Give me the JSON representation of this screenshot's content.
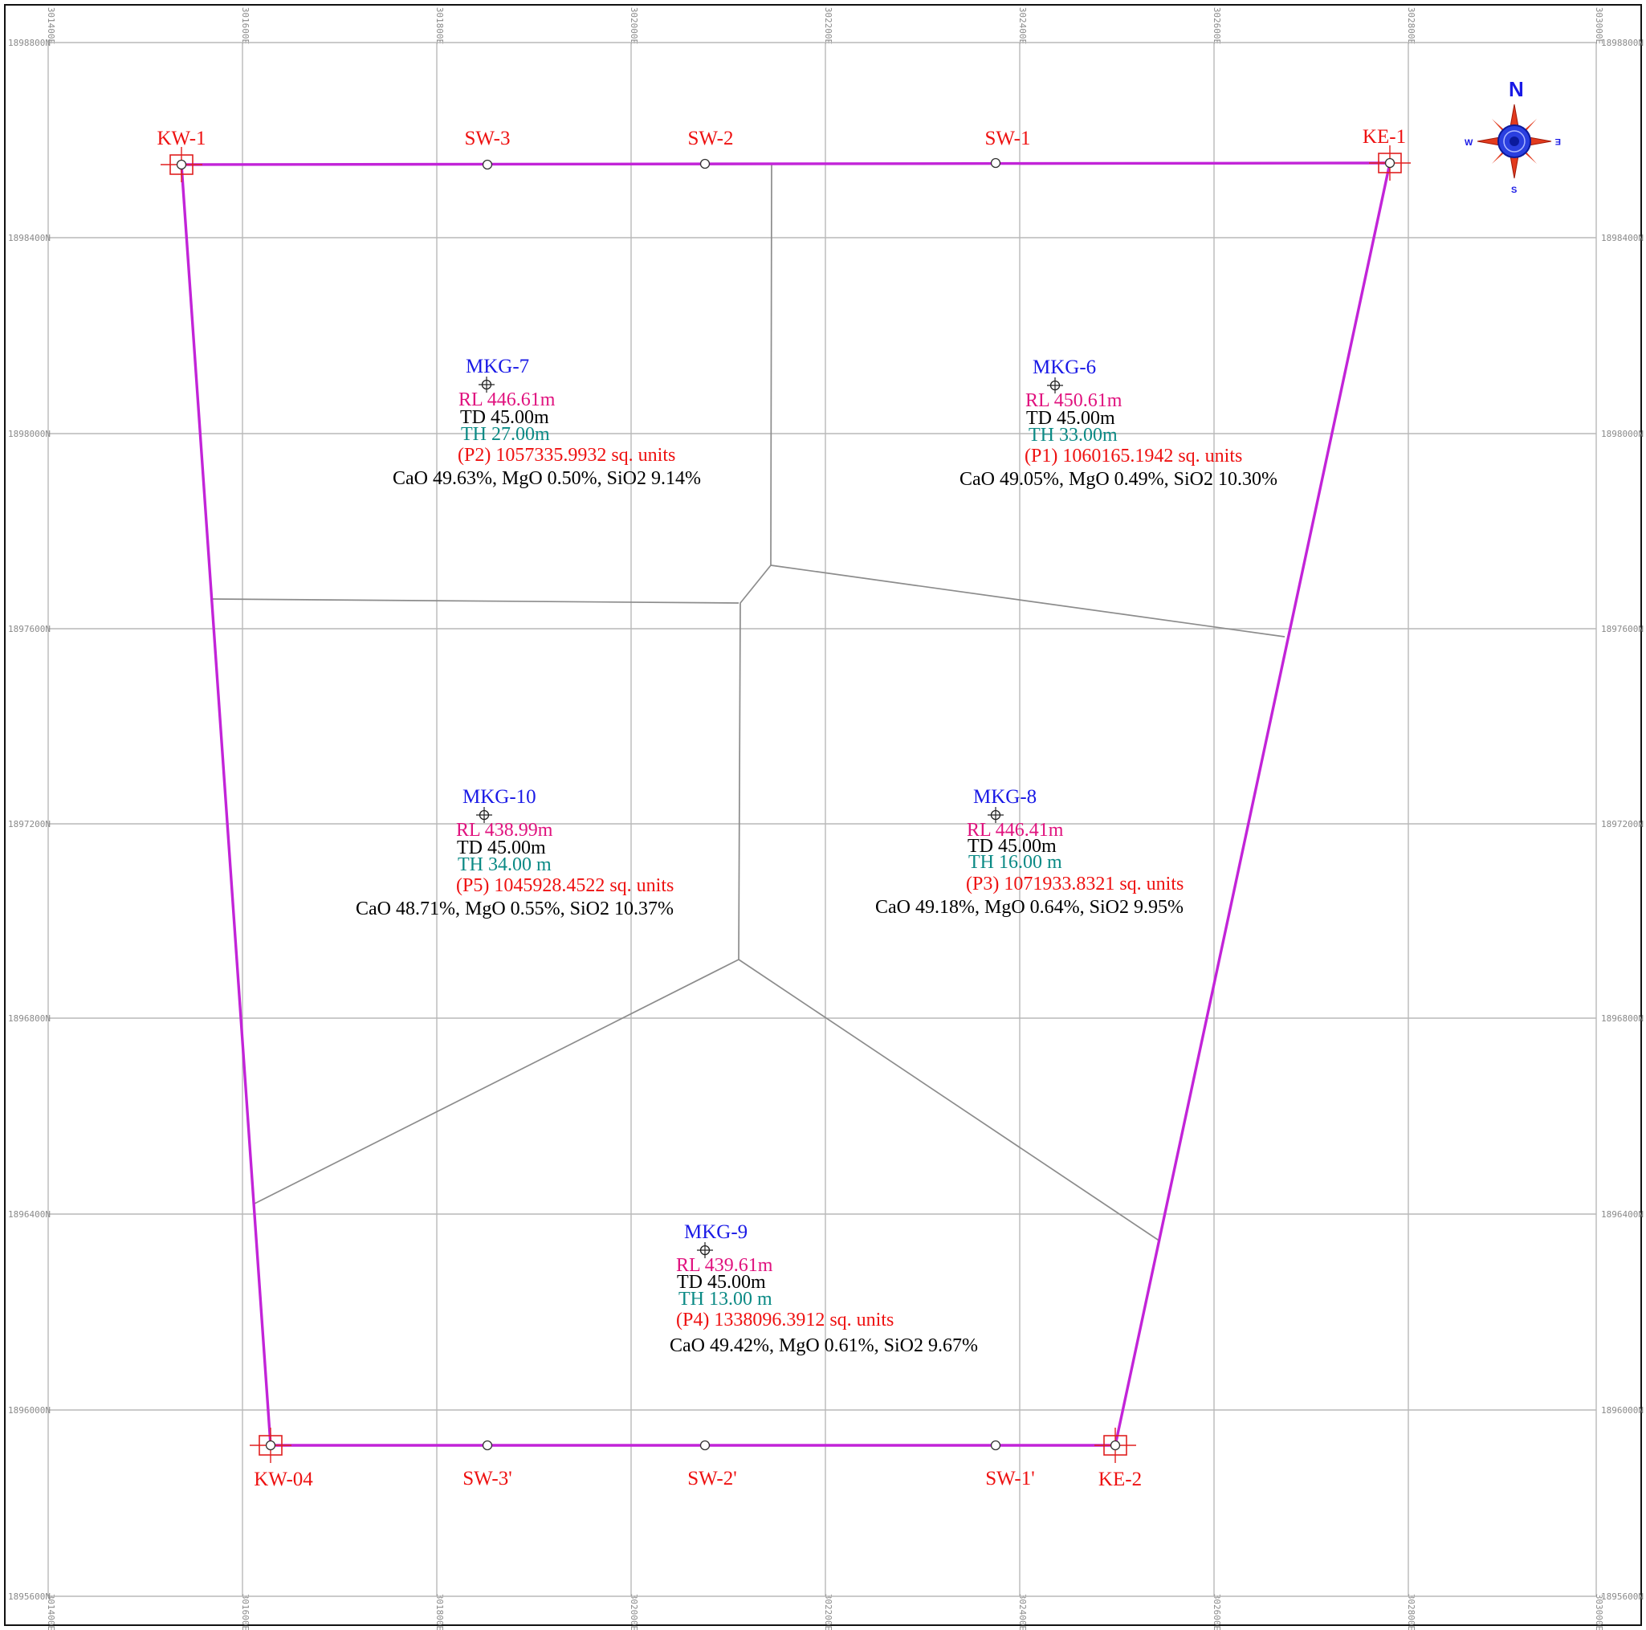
{
  "map": {
    "grid_eastings": [
      "301400E",
      "301600E",
      "301800E",
      "302000E",
      "302200E",
      "302400E",
      "302600E",
      "302800E",
      "303000E"
    ],
    "grid_northings": [
      "1898800N",
      "1898400N",
      "1898000N",
      "1897600N",
      "1897200N",
      "1896800N",
      "1896400N",
      "1896000N",
      "1895600N"
    ]
  },
  "compass": {
    "north": "N",
    "south": "S",
    "east": "E",
    "west": "W"
  },
  "pillars": [
    {
      "id": "KW-1",
      "label": "KW-1",
      "type": "corner"
    },
    {
      "id": "SW-3",
      "label": "SW-3",
      "type": "point"
    },
    {
      "id": "SW-2",
      "label": "SW-2",
      "type": "point"
    },
    {
      "id": "SW-1",
      "label": "SW-1",
      "type": "point"
    },
    {
      "id": "KE-1",
      "label": "KE-1",
      "type": "corner"
    },
    {
      "id": "KW-04",
      "label": "KW-04",
      "type": "corner"
    },
    {
      "id": "SW-3p",
      "label": "SW-3'",
      "type": "point"
    },
    {
      "id": "SW-2p",
      "label": "SW-2'",
      "type": "point"
    },
    {
      "id": "SW-1p",
      "label": "SW-1'",
      "type": "point"
    },
    {
      "id": "KE-2",
      "label": "KE-2",
      "type": "corner"
    }
  ],
  "boreholes": [
    {
      "id": "MKG-7",
      "name": "MKG-7",
      "rl": "RL 446.61m",
      "td": "TD 45.00m",
      "th": "TH 27.00m",
      "area": "(P2) 1057335.9932 sq. units",
      "chem": "CaO 49.63%, MgO 0.50%, SiO2 9.14%"
    },
    {
      "id": "MKG-6",
      "name": "MKG-6",
      "rl": "RL 450.61m",
      "td": "TD 45.00m",
      "th": "TH 33.00m",
      "area": "(P1) 1060165.1942 sq. units",
      "chem": "CaO 49.05%, MgO 0.49%, SiO2 10.30%"
    },
    {
      "id": "MKG-10",
      "name": "MKG-10",
      "rl": "RL 438.99m",
      "td": "TD 45.00m",
      "th": "TH 34.00 m",
      "area": "(P5) 1045928.4522 sq. units",
      "chem": "CaO 48.71%, MgO 0.55%, SiO2 10.37%"
    },
    {
      "id": "MKG-8",
      "name": "MKG-8",
      "rl": "RL 446.41m",
      "td": "TD 45.00m",
      "th": "TH 16.00 m",
      "area": "(P3) 1071933.8321 sq. units",
      "chem": "CaO 49.18%, MgO 0.64%, SiO2 9.95%"
    },
    {
      "id": "MKG-9",
      "name": "MKG-9",
      "rl": "RL 439.61m",
      "td": "TD 45.00m",
      "th": "TH 13.00 m",
      "area": "(P4) 1338096.3912 sq. units",
      "chem": "CaO 49.42%, MgO 0.61%, SiO2 9.67%"
    }
  ],
  "colors": {
    "boundary": "#c224d8",
    "pillar_label": "#ee1111",
    "borehole_name": "#1a1ae6",
    "rl": "#e0127e",
    "th": "#0b8a85",
    "polygon": "#8c8c8c",
    "grid": "#b9b9b9"
  }
}
